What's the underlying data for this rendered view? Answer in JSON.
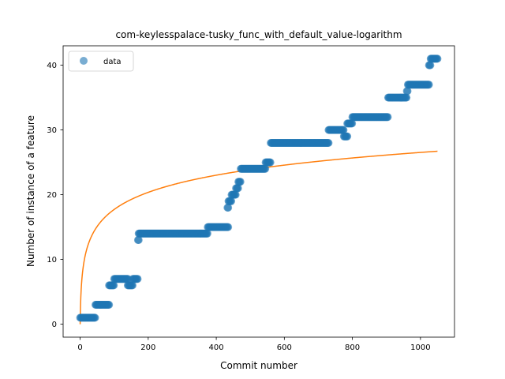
{
  "chart_data": {
    "type": "scatter",
    "title": "com-keylesspalace-tusky_func_with_default_value-logarithm",
    "xlabel": "Commit number",
    "ylabel": "Number of instance of a feature",
    "xlim": [
      -50,
      1100
    ],
    "ylim": [
      -2,
      43
    ],
    "xticks": [
      0,
      200,
      400,
      600,
      800,
      1000
    ],
    "yticks": [
      0,
      10,
      20,
      30,
      40
    ],
    "legend": {
      "position": "top-left",
      "entries": [
        "data"
      ]
    },
    "colors": {
      "data": "#1f77b4",
      "fit": "#ff7f0e"
    },
    "series": [
      {
        "name": "data",
        "kind": "scatter",
        "segments": [
          {
            "x_start": 0,
            "x_end": 45,
            "y": 1
          },
          {
            "x_start": 45,
            "x_end": 85,
            "y": 3
          },
          {
            "x_start": 85,
            "x_end": 100,
            "y": 6
          },
          {
            "x_start": 100,
            "x_end": 140,
            "y": 7
          },
          {
            "x_start": 140,
            "x_end": 155,
            "y": 6
          },
          {
            "x_start": 155,
            "x_end": 170,
            "y": 7
          },
          {
            "x_start": 170,
            "x_end": 172,
            "y": 13
          },
          {
            "x_start": 172,
            "x_end": 375,
            "y": 14
          },
          {
            "x_start": 375,
            "x_end": 435,
            "y": 15
          },
          {
            "x_start": 433,
            "x_end": 436,
            "y": 18
          },
          {
            "x_start": 436,
            "x_end": 445,
            "y": 19
          },
          {
            "x_start": 445,
            "x_end": 458,
            "y": 20
          },
          {
            "x_start": 458,
            "x_end": 465,
            "y": 21
          },
          {
            "x_start": 465,
            "x_end": 472,
            "y": 22
          },
          {
            "x_start": 472,
            "x_end": 545,
            "y": 24
          },
          {
            "x_start": 545,
            "x_end": 560,
            "y": 25
          },
          {
            "x_start": 560,
            "x_end": 730,
            "y": 28
          },
          {
            "x_start": 730,
            "x_end": 775,
            "y": 30
          },
          {
            "x_start": 775,
            "x_end": 785,
            "y": 29
          },
          {
            "x_start": 785,
            "x_end": 800,
            "y": 31
          },
          {
            "x_start": 800,
            "x_end": 905,
            "y": 32
          },
          {
            "x_start": 905,
            "x_end": 960,
            "y": 35
          },
          {
            "x_start": 960,
            "x_end": 963,
            "y": 36
          },
          {
            "x_start": 963,
            "x_end": 1025,
            "y": 37
          },
          {
            "x_start": 1025,
            "x_end": 1030,
            "y": 40
          },
          {
            "x_start": 1030,
            "x_end": 1050,
            "y": 41
          }
        ]
      },
      {
        "name": "",
        "kind": "line",
        "model": "a*ln(x+1)+b",
        "a": 3.84,
        "b": 0.0,
        "x_range": [
          0,
          1050
        ]
      }
    ]
  }
}
